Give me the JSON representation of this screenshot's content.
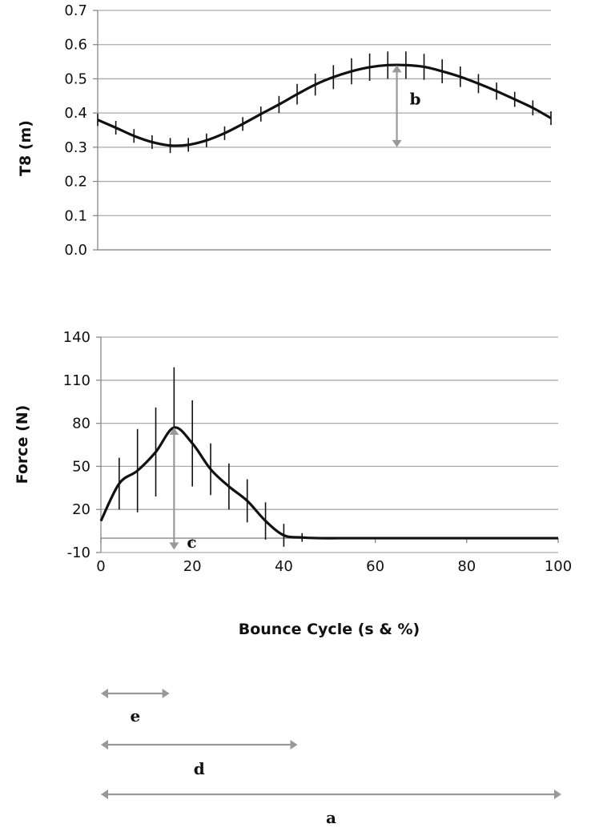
{
  "colors": {
    "line": "#111111",
    "grid": "#aaaaaa",
    "axis": "#888888",
    "annotation": "#999999",
    "text": "#111111"
  },
  "chart_data": [
    {
      "type": "line",
      "title": "",
      "xlabel": "",
      "ylabel": "T8 (m)",
      "xlim": [
        0,
        100
      ],
      "ylim": [
        0.0,
        0.7
      ],
      "y_ticks": [
        "0.0",
        "0.1",
        "0.2",
        "0.3",
        "0.4",
        "0.5",
        "0.6",
        "0.7"
      ],
      "x_ticks_shown": false,
      "grid": true,
      "x": [
        0,
        4,
        8,
        12,
        16,
        20,
        24,
        28,
        32,
        36,
        40,
        44,
        48,
        52,
        56,
        60,
        64,
        68,
        72,
        76,
        80,
        84,
        88,
        92,
        96,
        100
      ],
      "series": [
        {
          "values": [
            0.38,
            0.357,
            0.333,
            0.315,
            0.305,
            0.307,
            0.32,
            0.341,
            0.368,
            0.397,
            0.425,
            0.455,
            0.483,
            0.505,
            0.522,
            0.534,
            0.54,
            0.54,
            0.535,
            0.522,
            0.506,
            0.486,
            0.464,
            0.44,
            0.415,
            0.385
          ],
          "error": [
            0.018,
            0.02,
            0.02,
            0.02,
            0.022,
            0.02,
            0.02,
            0.02,
            0.02,
            0.022,
            0.025,
            0.03,
            0.032,
            0.035,
            0.038,
            0.04,
            0.04,
            0.04,
            0.038,
            0.035,
            0.03,
            0.028,
            0.025,
            0.022,
            0.022,
            0.02
          ]
        }
      ],
      "annotations": [
        {
          "label": "b",
          "type": "vertical-arrow",
          "x": 66,
          "y_from": 0.3,
          "y_to": 0.54
        }
      ]
    },
    {
      "type": "line",
      "title": "",
      "xlabel": "Bounce Cycle (s & %)",
      "ylabel": "Force (N)",
      "xlim": [
        0,
        100
      ],
      "ylim": [
        -10,
        140
      ],
      "y_ticks": [
        "-10",
        "20",
        "50",
        "80",
        "110",
        "140"
      ],
      "x_ticks": [
        "0",
        "20",
        "40",
        "60",
        "80",
        "100"
      ],
      "grid": true,
      "x": [
        0,
        4,
        8,
        12,
        16,
        20,
        24,
        28,
        32,
        36,
        40,
        44,
        48,
        52,
        56,
        60,
        64,
        68,
        72,
        76,
        80,
        84,
        88,
        92,
        96,
        100
      ],
      "series": [
        {
          "values": [
            12,
            38,
            47,
            60,
            77,
            66,
            48,
            36,
            26,
            12,
            2,
            0.5,
            0,
            0,
            0,
            0,
            0,
            0,
            0,
            0,
            0,
            0,
            0,
            0,
            0,
            0
          ],
          "error": [
            0,
            18,
            29,
            31,
            42,
            30,
            18,
            16,
            15,
            13,
            8,
            3,
            0,
            0,
            0,
            0,
            0,
            0,
            0,
            0,
            0,
            0,
            0,
            0,
            0,
            0
          ]
        }
      ],
      "annotations": [
        {
          "label": "c",
          "type": "vertical-arrow",
          "x": 16,
          "y_from": -8,
          "y_to": 77
        }
      ]
    }
  ],
  "bottom_annotations": [
    {
      "label": "e",
      "x_from": 0,
      "x_to": 15
    },
    {
      "label": "d",
      "x_from": 0,
      "x_to": 43
    },
    {
      "label": "a",
      "x_from": 0,
      "x_to": 100
    }
  ]
}
